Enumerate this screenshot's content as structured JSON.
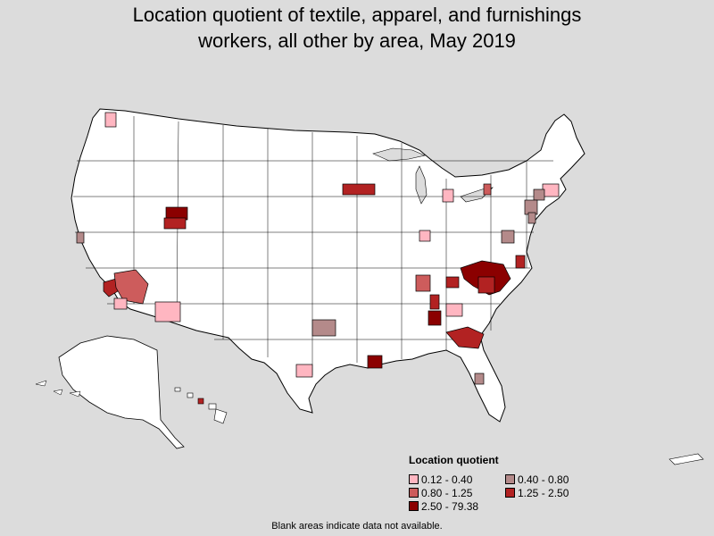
{
  "title_line1": "Location quotient of textile, apparel, and furnishings",
  "title_line2": "workers, all other by area, May 2019",
  "legend": {
    "title": "Location quotient",
    "items": [
      {
        "label": "0.12 - 0.40",
        "color": "#ffb6c1"
      },
      {
        "label": "0.40 - 0.80",
        "color": "#b48a8a"
      },
      {
        "label": "0.80 - 1.25",
        "color": "#cd5c5c"
      },
      {
        "label": "1.25 - 2.50",
        "color": "#b22222"
      },
      {
        "label": "2.50 - 79.38",
        "color": "#8b0000"
      }
    ]
  },
  "note": "Blank areas indicate data not available.",
  "colors": {
    "background": "#dcdcdc",
    "land": "#ffffff",
    "border": "#000000"
  }
}
